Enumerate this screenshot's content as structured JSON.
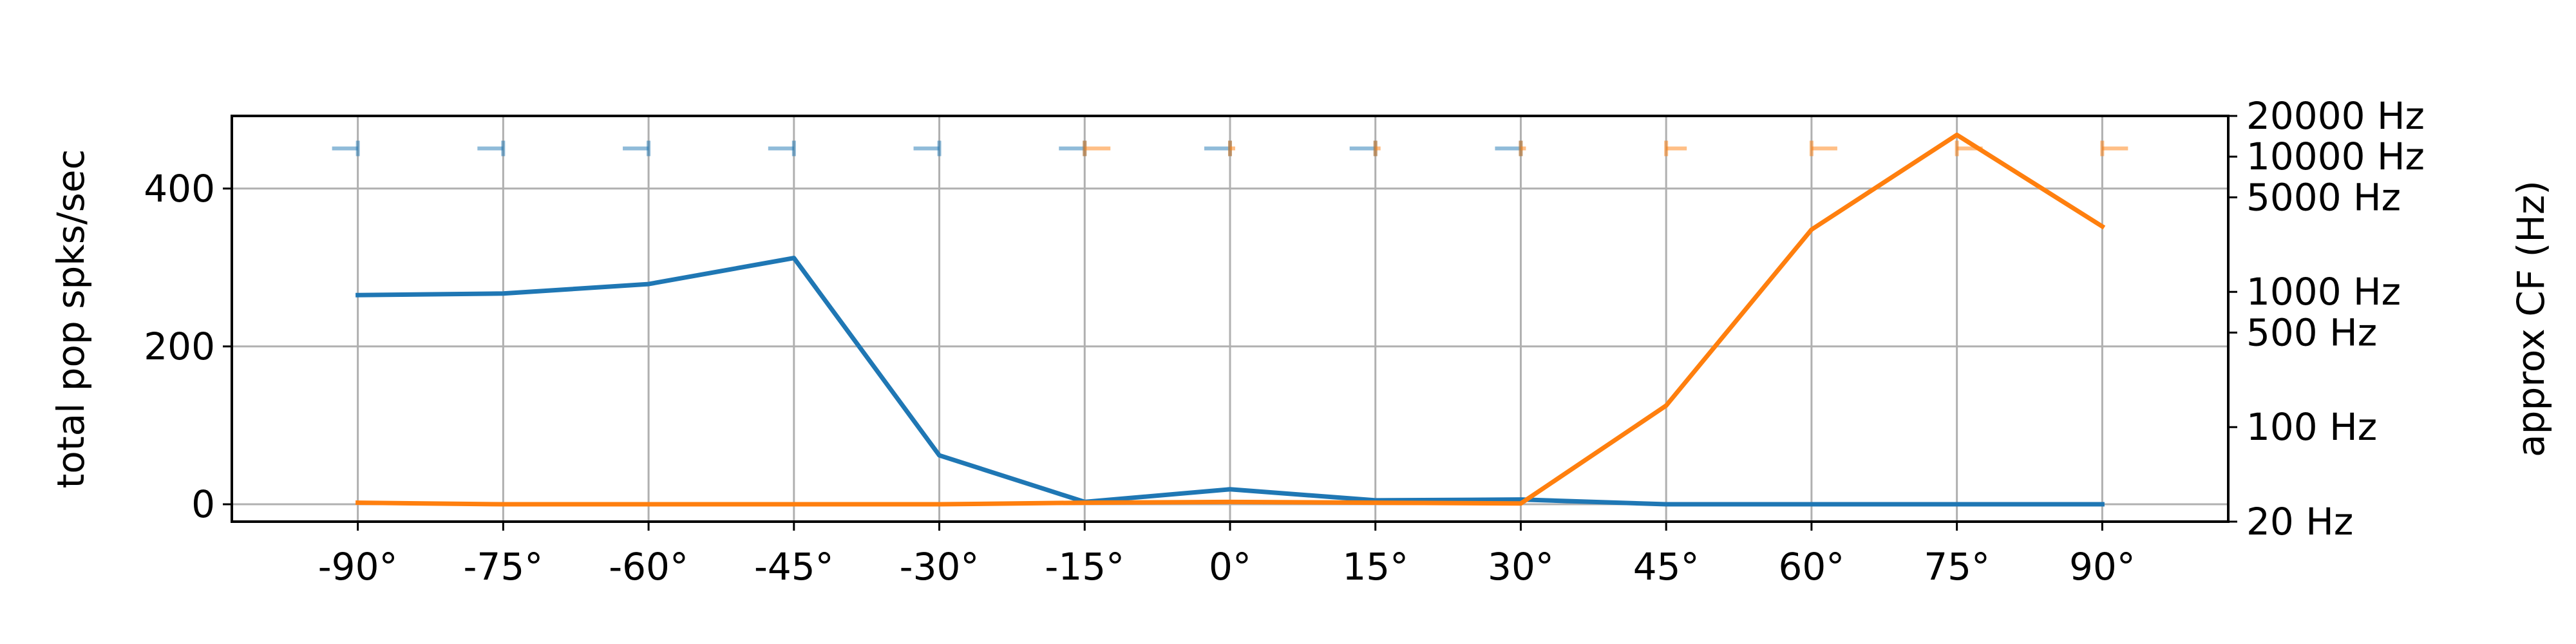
{
  "chart_data": {
    "type": "line",
    "x_categories": [
      "-90°",
      "-75°",
      "-60°",
      "-45°",
      "-30°",
      "-15°",
      "0°",
      "15°",
      "30°",
      "45°",
      "60°",
      "75°",
      "90°"
    ],
    "x_values": [
      -90,
      -75,
      -60,
      -45,
      -30,
      -15,
      0,
      15,
      30,
      45,
      60,
      75,
      90
    ],
    "xlim": [
      -103,
      103
    ],
    "ylim": [
      -22,
      492
    ],
    "yticks": [
      0,
      200,
      400
    ],
    "ylabel": "total pop spks/sec",
    "y2label": "approx CF (Hz)",
    "y2_scale": "log",
    "y2lim": [
      20,
      20000
    ],
    "y2_ticks": [
      {
        "value": 20,
        "label": "20 Hz"
      },
      {
        "value": 100,
        "label": "100 Hz"
      },
      {
        "value": 500,
        "label": "500 Hz"
      },
      {
        "value": 1000,
        "label": "1000 Hz"
      },
      {
        "value": 5000,
        "label": "5000 Hz"
      },
      {
        "value": 10000,
        "label": "10000 Hz"
      },
      {
        "value": 20000,
        "label": "20000 Hz"
      }
    ],
    "grid": true,
    "series": [
      {
        "color": "#1f77b4",
        "values": [
          265,
          267,
          279,
          312,
          62,
          3,
          19,
          5,
          6,
          0,
          0,
          0,
          0
        ]
      },
      {
        "color": "#ff7f0e",
        "values": [
          2,
          0,
          0,
          0,
          0,
          2,
          3,
          2,
          1,
          125,
          348,
          468,
          352
        ]
      }
    ],
    "cf_markers": [
      {
        "color": "#1f77b4",
        "alpha": 0.5,
        "points": [
          {
            "x": -90,
            "left": 5,
            "right": 0.0,
            "cf": 11500
          },
          {
            "x": -75,
            "left": 5,
            "right": 0.0,
            "cf": 11500
          },
          {
            "x": -60,
            "left": 5,
            "right": 0.0,
            "cf": 11500
          },
          {
            "x": -45,
            "left": 5,
            "right": 0.0,
            "cf": 11500
          },
          {
            "x": -30,
            "left": 5,
            "right": 0.0,
            "cf": 11500
          },
          {
            "x": -15,
            "left": 5,
            "right": 0.0,
            "cf": 11500
          },
          {
            "x": 0,
            "left": 5,
            "right": 0.0,
            "cf": 11500
          },
          {
            "x": 15,
            "left": 5,
            "right": 0.0,
            "cf": 11500
          },
          {
            "x": 30,
            "left": 5,
            "right": 0.0,
            "cf": 11500
          }
        ]
      },
      {
        "color": "#ff7f0e",
        "alpha": 0.5,
        "points": [
          {
            "x": -15,
            "left": 0.0,
            "right": 5,
            "cf": 11500
          },
          {
            "x": 0,
            "left": 0.0,
            "right": 1,
            "cf": 11500
          },
          {
            "x": 15,
            "left": 0.0,
            "right": 1,
            "cf": 11500
          },
          {
            "x": 30,
            "left": 0.0,
            "right": 1,
            "cf": 11500
          },
          {
            "x": 45,
            "left": 0.0,
            "right": 4,
            "cf": 11500
          },
          {
            "x": 60,
            "left": 0.0,
            "right": 5,
            "cf": 11500
          },
          {
            "x": 75,
            "left": 0.0,
            "right": 5,
            "cf": 11500
          },
          {
            "x": 90,
            "left": 0.0,
            "right": 5,
            "cf": 11500
          }
        ]
      }
    ]
  }
}
